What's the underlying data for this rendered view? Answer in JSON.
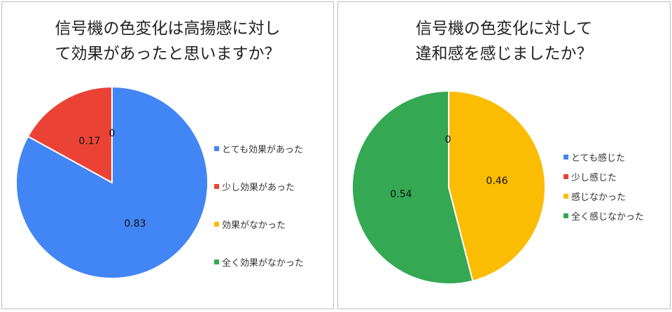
{
  "chart_data": [
    {
      "type": "pie",
      "title": "信号機の色変化は高揚感に対し\nて効果があったと思いますか？",
      "categories": [
        "とても効果があった",
        "少し効果があった",
        "効果がなかった",
        "全く効果がなかった"
      ],
      "values": [
        0.83,
        0.17,
        0,
        0
      ],
      "data_labels": [
        "0.83",
        "0.17",
        "0",
        ""
      ],
      "colors": [
        "#4285F4",
        "#EA4335",
        "#FBBC04",
        "#34A853"
      ],
      "legend": "right"
    },
    {
      "type": "pie",
      "title": "信号機の色変化に対して\n違和感を感じましたか？",
      "categories": [
        "とても感じた",
        "少し感じた",
        "感じなかった",
        "全く感じなかった"
      ],
      "values": [
        0,
        0,
        0.46,
        0.54
      ],
      "data_labels": [
        "0",
        "",
        "0.46",
        "0.54"
      ],
      "colors": [
        "#4285F4",
        "#EA4335",
        "#FBBC04",
        "#34A853"
      ],
      "legend": "right"
    }
  ]
}
